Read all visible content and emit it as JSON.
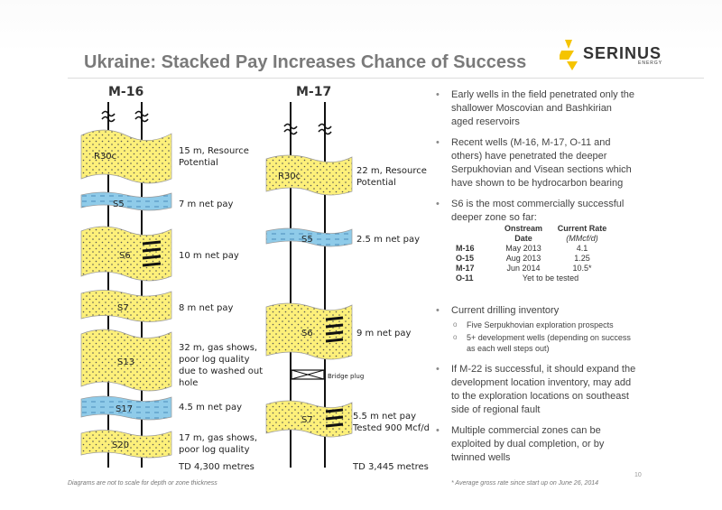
{
  "title": "Ukraine: Stacked Pay Increases Chance of Success",
  "logo": {
    "name": "SERINUS",
    "sub": "ENERGY",
    "color": "#f5c400"
  },
  "m16": {
    "well": "M-16",
    "zones": [
      {
        "name": "R30c",
        "label": [
          "15 m, Resource",
          "Potential"
        ]
      },
      {
        "name": "S5",
        "label": [
          "7 m net pay"
        ]
      },
      {
        "name": "S6",
        "label": [
          "10 m net pay"
        ]
      },
      {
        "name": "S7",
        "label": [
          "8 m net pay"
        ]
      },
      {
        "name": "S13",
        "label": [
          "32 m, gas shows,",
          "poor log quality",
          "due to washed out",
          "hole"
        ]
      },
      {
        "name": "S17",
        "label": [
          "4.5 m net pay"
        ]
      },
      {
        "name": "S20",
        "label": [
          "17 m, gas shows,",
          "poor log quality"
        ]
      }
    ],
    "td": "TD 4,300 metres"
  },
  "m17": {
    "well": "M-17",
    "zones": [
      {
        "name": "R30c",
        "label": [
          "22 m, Resource",
          "Potential"
        ]
      },
      {
        "name": "S5",
        "label": [
          "2.5 m net pay"
        ]
      },
      {
        "name": "S6",
        "label": [
          "9 m net pay"
        ]
      },
      {
        "name": "S7",
        "label": [
          "5.5 m net pay",
          "Tested 900 Mcf/d"
        ]
      }
    ],
    "bridge_plug": "Bridge plug",
    "td": "TD 3,445 metres"
  },
  "bullets": {
    "b1": "Early wells in the field penetrated only the shallower Moscovian and Bashkirian aged reservoirs",
    "b2": "Recent wells (M-16, M-17, O-11 and others) have penetrated the deeper Serpukhovian and Visean sections which have shown to be hydrocarbon bearing",
    "b3": "S6 is the most commercially successful deeper zone so far:",
    "b4": "Current drilling inventory",
    "b4_sub1": "Five Serpukhovian exploration prospects",
    "b4_sub2": "5+ development wells (depending on success as each well steps out)",
    "b5": "If M-22 is successful, it should expand the development location inventory, may add to the exploration locations on southeast side of regional fault",
    "b6": "Multiple commercial zones can be exploited by dual completion, or by twinned wells"
  },
  "table": {
    "h1": "Onstream",
    "h1b": "Date",
    "h2": "Current Rate",
    "h2b": "(MMcf/d)",
    "rows": [
      {
        "well": "M-16",
        "date": "May 2013",
        "rate": "4.1"
      },
      {
        "well": "O-15",
        "date": "Aug 2013",
        "rate": "1.25"
      },
      {
        "well": "M-17",
        "date": "Jun 2014",
        "rate": "10.5*"
      }
    ],
    "last_well": "O-11",
    "last_note": "Yet to be tested"
  },
  "footnote_left": "Diagrams are not to scale for depth or zone thickness",
  "footnote_right": "* Average gross rate since start up on June 26, 2014",
  "page_number": "10",
  "colors": {
    "sand": "#fdf07a",
    "shale": "#8fcbe9",
    "title": "#7a7a7a"
  }
}
